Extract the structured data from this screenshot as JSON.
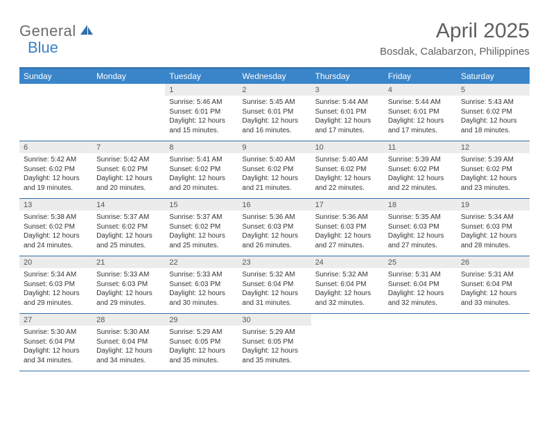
{
  "brand": {
    "general": "General",
    "blue": "Blue"
  },
  "title": "April 2025",
  "location": "Bosdak, Calabarzon, Philippines",
  "colors": {
    "header_bg": "#3a85c9",
    "row_border": "#2f6fa8",
    "daynum_bg": "#ececec",
    "text": "#333333",
    "title_text": "#5f5f5f",
    "logo_gray": "#6b6b6b",
    "logo_blue": "#3a7fc4",
    "page_bg": "#ffffff"
  },
  "typography": {
    "title_fontsize": 30,
    "location_fontsize": 15,
    "dayhead_fontsize": 12,
    "daynum_fontsize": 11,
    "cell_fontsize": 10
  },
  "day_headers": [
    "Sunday",
    "Monday",
    "Tuesday",
    "Wednesday",
    "Thursday",
    "Friday",
    "Saturday"
  ],
  "weeks": [
    [
      null,
      null,
      {
        "n": "1",
        "sr": "Sunrise: 5:46 AM",
        "ss": "Sunset: 6:01 PM",
        "dl": "Daylight: 12 hours and 15 minutes."
      },
      {
        "n": "2",
        "sr": "Sunrise: 5:45 AM",
        "ss": "Sunset: 6:01 PM",
        "dl": "Daylight: 12 hours and 16 minutes."
      },
      {
        "n": "3",
        "sr": "Sunrise: 5:44 AM",
        "ss": "Sunset: 6:01 PM",
        "dl": "Daylight: 12 hours and 17 minutes."
      },
      {
        "n": "4",
        "sr": "Sunrise: 5:44 AM",
        "ss": "Sunset: 6:01 PM",
        "dl": "Daylight: 12 hours and 17 minutes."
      },
      {
        "n": "5",
        "sr": "Sunrise: 5:43 AM",
        "ss": "Sunset: 6:02 PM",
        "dl": "Daylight: 12 hours and 18 minutes."
      }
    ],
    [
      {
        "n": "6",
        "sr": "Sunrise: 5:42 AM",
        "ss": "Sunset: 6:02 PM",
        "dl": "Daylight: 12 hours and 19 minutes."
      },
      {
        "n": "7",
        "sr": "Sunrise: 5:42 AM",
        "ss": "Sunset: 6:02 PM",
        "dl": "Daylight: 12 hours and 20 minutes."
      },
      {
        "n": "8",
        "sr": "Sunrise: 5:41 AM",
        "ss": "Sunset: 6:02 PM",
        "dl": "Daylight: 12 hours and 20 minutes."
      },
      {
        "n": "9",
        "sr": "Sunrise: 5:40 AM",
        "ss": "Sunset: 6:02 PM",
        "dl": "Daylight: 12 hours and 21 minutes."
      },
      {
        "n": "10",
        "sr": "Sunrise: 5:40 AM",
        "ss": "Sunset: 6:02 PM",
        "dl": "Daylight: 12 hours and 22 minutes."
      },
      {
        "n": "11",
        "sr": "Sunrise: 5:39 AM",
        "ss": "Sunset: 6:02 PM",
        "dl": "Daylight: 12 hours and 22 minutes."
      },
      {
        "n": "12",
        "sr": "Sunrise: 5:39 AM",
        "ss": "Sunset: 6:02 PM",
        "dl": "Daylight: 12 hours and 23 minutes."
      }
    ],
    [
      {
        "n": "13",
        "sr": "Sunrise: 5:38 AM",
        "ss": "Sunset: 6:02 PM",
        "dl": "Daylight: 12 hours and 24 minutes."
      },
      {
        "n": "14",
        "sr": "Sunrise: 5:37 AM",
        "ss": "Sunset: 6:02 PM",
        "dl": "Daylight: 12 hours and 25 minutes."
      },
      {
        "n": "15",
        "sr": "Sunrise: 5:37 AM",
        "ss": "Sunset: 6:02 PM",
        "dl": "Daylight: 12 hours and 25 minutes."
      },
      {
        "n": "16",
        "sr": "Sunrise: 5:36 AM",
        "ss": "Sunset: 6:03 PM",
        "dl": "Daylight: 12 hours and 26 minutes."
      },
      {
        "n": "17",
        "sr": "Sunrise: 5:36 AM",
        "ss": "Sunset: 6:03 PM",
        "dl": "Daylight: 12 hours and 27 minutes."
      },
      {
        "n": "18",
        "sr": "Sunrise: 5:35 AM",
        "ss": "Sunset: 6:03 PM",
        "dl": "Daylight: 12 hours and 27 minutes."
      },
      {
        "n": "19",
        "sr": "Sunrise: 5:34 AM",
        "ss": "Sunset: 6:03 PM",
        "dl": "Daylight: 12 hours and 28 minutes."
      }
    ],
    [
      {
        "n": "20",
        "sr": "Sunrise: 5:34 AM",
        "ss": "Sunset: 6:03 PM",
        "dl": "Daylight: 12 hours and 29 minutes."
      },
      {
        "n": "21",
        "sr": "Sunrise: 5:33 AM",
        "ss": "Sunset: 6:03 PM",
        "dl": "Daylight: 12 hours and 29 minutes."
      },
      {
        "n": "22",
        "sr": "Sunrise: 5:33 AM",
        "ss": "Sunset: 6:03 PM",
        "dl": "Daylight: 12 hours and 30 minutes."
      },
      {
        "n": "23",
        "sr": "Sunrise: 5:32 AM",
        "ss": "Sunset: 6:04 PM",
        "dl": "Daylight: 12 hours and 31 minutes."
      },
      {
        "n": "24",
        "sr": "Sunrise: 5:32 AM",
        "ss": "Sunset: 6:04 PM",
        "dl": "Daylight: 12 hours and 32 minutes."
      },
      {
        "n": "25",
        "sr": "Sunrise: 5:31 AM",
        "ss": "Sunset: 6:04 PM",
        "dl": "Daylight: 12 hours and 32 minutes."
      },
      {
        "n": "26",
        "sr": "Sunrise: 5:31 AM",
        "ss": "Sunset: 6:04 PM",
        "dl": "Daylight: 12 hours and 33 minutes."
      }
    ],
    [
      {
        "n": "27",
        "sr": "Sunrise: 5:30 AM",
        "ss": "Sunset: 6:04 PM",
        "dl": "Daylight: 12 hours and 34 minutes."
      },
      {
        "n": "28",
        "sr": "Sunrise: 5:30 AM",
        "ss": "Sunset: 6:04 PM",
        "dl": "Daylight: 12 hours and 34 minutes."
      },
      {
        "n": "29",
        "sr": "Sunrise: 5:29 AM",
        "ss": "Sunset: 6:05 PM",
        "dl": "Daylight: 12 hours and 35 minutes."
      },
      {
        "n": "30",
        "sr": "Sunrise: 5:29 AM",
        "ss": "Sunset: 6:05 PM",
        "dl": "Daylight: 12 hours and 35 minutes."
      },
      null,
      null,
      null
    ]
  ]
}
